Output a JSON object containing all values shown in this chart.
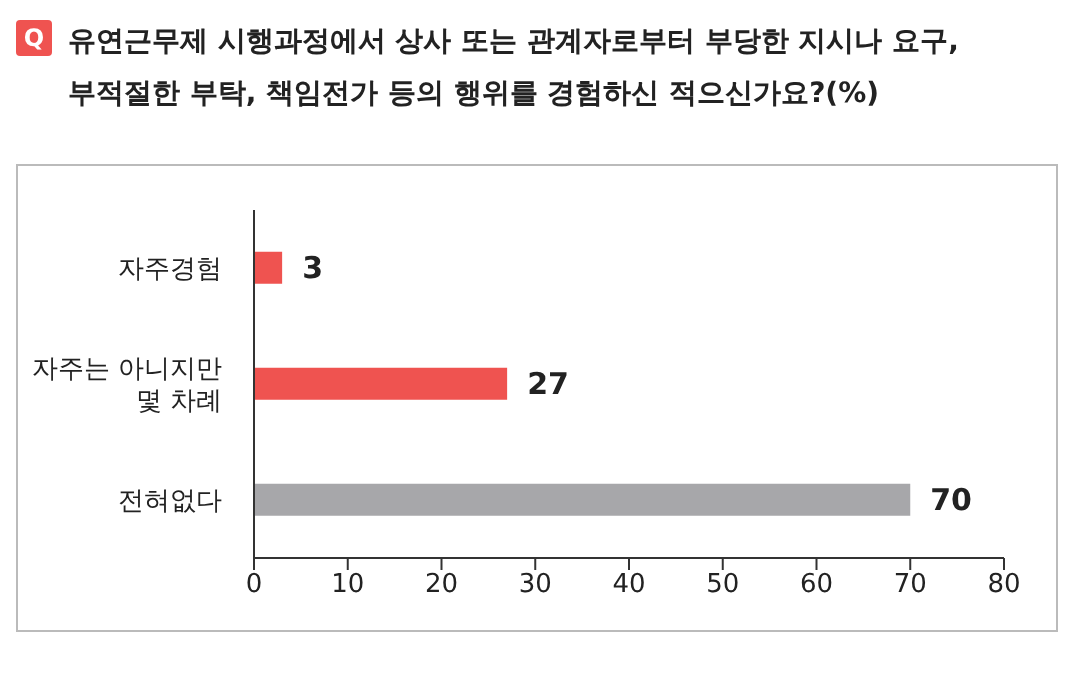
{
  "chart_data": {
    "type": "bar",
    "orientation": "horizontal",
    "title": "유연근무제 시행과정에서 상사 또는 관계자로부터 부당한 지시나 요구, 부적절한 부탁, 책임전가 등의 행위를 경험하신 적으신가요?(%)",
    "annotations": [
      "Q"
    ],
    "categories": [
      "자주경험",
      "자주는 아니지만 몇 차례",
      "전혀없다"
    ],
    "values": [
      3,
      27,
      70
    ],
    "colors": [
      "#ef5350",
      "#ef5350",
      "#a7a7aa"
    ],
    "xlim": [
      0,
      80
    ],
    "xticks": [
      0,
      10,
      20,
      30,
      40,
      50,
      60,
      70,
      80
    ],
    "data_labels": true,
    "grid": false
  }
}
